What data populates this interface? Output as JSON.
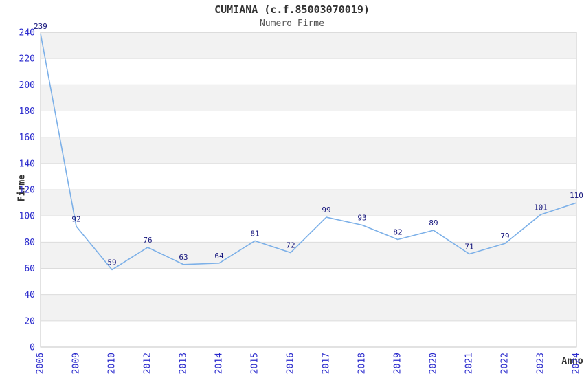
{
  "header": {
    "title": "CUMIANA (c.f.85003070019)",
    "subtitle": "Numero Firme"
  },
  "chart_data": {
    "type": "line",
    "title": "CUMIANA (c.f.85003070019)",
    "subtitle": "Numero Firme",
    "categories": [
      "2006",
      "2009",
      "2010",
      "2012",
      "2013",
      "2014",
      "2015",
      "2016",
      "2017",
      "2018",
      "2019",
      "2020",
      "2021",
      "2022",
      "2023",
      "2024"
    ],
    "values": [
      239,
      92,
      59,
      76,
      63,
      64,
      81,
      72,
      99,
      93,
      82,
      89,
      71,
      79,
      101,
      110
    ],
    "xlabel": "Anno",
    "ylabel": "Firme",
    "ylim": [
      0,
      240
    ],
    "ytick_step": 20,
    "grid": true,
    "banded_background": true,
    "legend_position": "none",
    "data_labels_visible": true,
    "colors": {
      "line": "#7cb0e8",
      "tick_label": "#2a2acd",
      "data_label": "#16167d",
      "band_gray": "#f2f2f2",
      "band_white": "#ffffff",
      "gridline": "#dcdcdc",
      "plot_border": "#c6c6c6",
      "title": "#333333",
      "subtitle": "#555555",
      "axis_title": "#333333"
    }
  }
}
